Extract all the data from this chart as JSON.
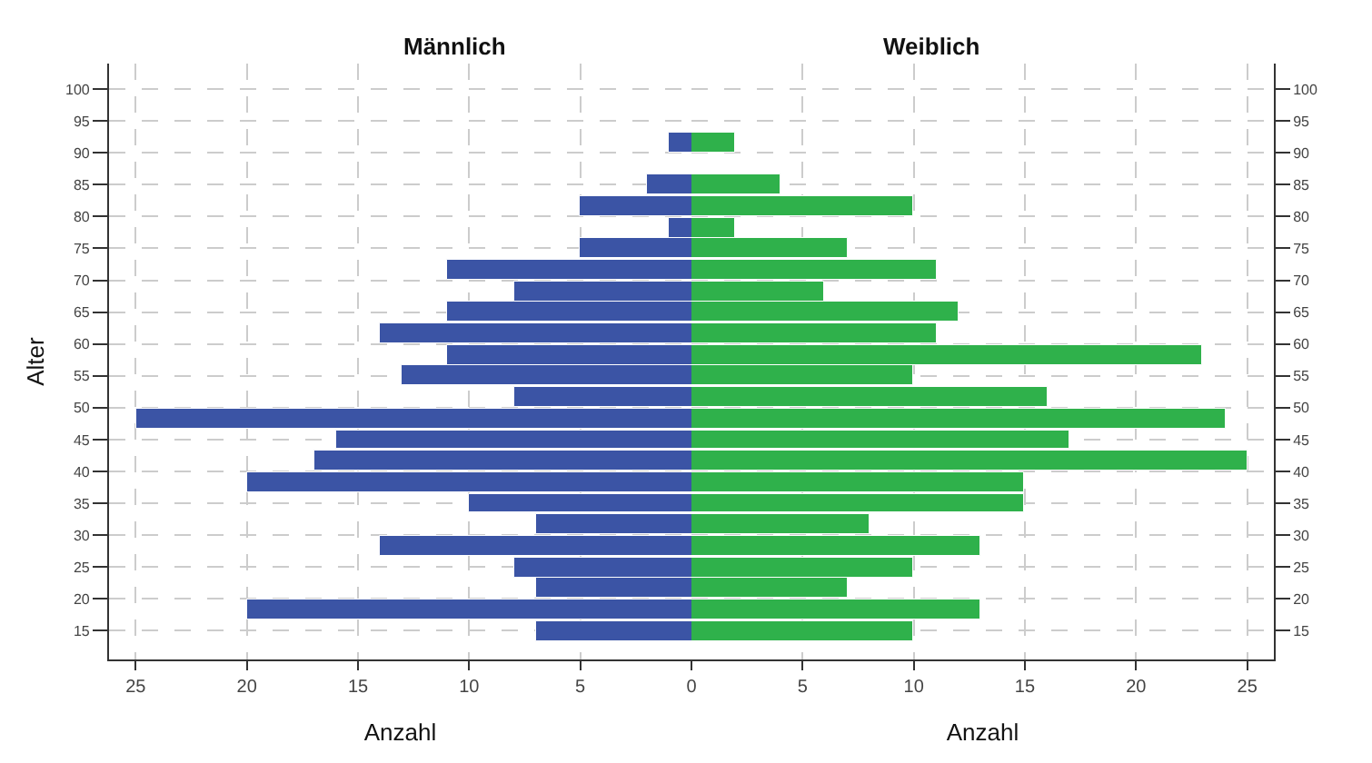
{
  "chart_data": [
    {
      "type": "bar",
      "orientation": "horizontal",
      "title": "Männlich",
      "xlabel": "Anzahl",
      "ylabel": "Alter",
      "color": "#3b54a5",
      "x": [
        15,
        18.3,
        21.7,
        25,
        28.3,
        31.7,
        35,
        38.3,
        41.7,
        45,
        48.3,
        51.7,
        55,
        58.3,
        61.7,
        65,
        68.3,
        71.7,
        75,
        78.3,
        81.7,
        85,
        88.3,
        91.7
      ],
      "values": [
        7,
        20,
        7,
        8,
        14,
        7,
        10,
        20,
        17,
        16,
        25,
        8,
        13,
        11,
        14,
        11,
        8,
        11,
        5,
        1,
        5,
        2,
        null,
        1
      ],
      "xlim": [
        26.2,
        0
      ],
      "xticks": [
        25,
        20,
        15,
        10,
        5,
        0
      ],
      "ylim": [
        10.5,
        104
      ],
      "yticks": [
        15,
        20,
        25,
        30,
        35,
        40,
        45,
        50,
        55,
        60,
        65,
        70,
        75,
        80,
        85,
        90,
        95,
        100
      ],
      "grid": true,
      "legend": false
    },
    {
      "type": "bar",
      "orientation": "horizontal",
      "title": "Weiblich",
      "xlabel": "Anzahl",
      "color": "#2fb14b",
      "x": [
        15,
        18.3,
        21.7,
        25,
        28.3,
        31.7,
        35,
        38.3,
        41.7,
        45,
        48.3,
        51.7,
        55,
        58.3,
        61.7,
        65,
        68.3,
        71.7,
        75,
        78.3,
        81.7,
        85,
        88.3,
        91.7
      ],
      "values": [
        10,
        13,
        7,
        10,
        13,
        8,
        15,
        15,
        25,
        17,
        24,
        16,
        10,
        23,
        11,
        12,
        6,
        11,
        7,
        2,
        10,
        4,
        null,
        2
      ],
      "xlim": [
        0,
        26.2
      ],
      "xticks": [
        {
          "value": 0,
          "label": null
        },
        5,
        10,
        15,
        20,
        25
      ],
      "ylim": [
        10.5,
        104
      ],
      "yticks": [
        15,
        20,
        25,
        30,
        35,
        40,
        45,
        50,
        55,
        60,
        65,
        70,
        75,
        80,
        85,
        90,
        95,
        100
      ],
      "grid": true,
      "legend": false
    }
  ]
}
